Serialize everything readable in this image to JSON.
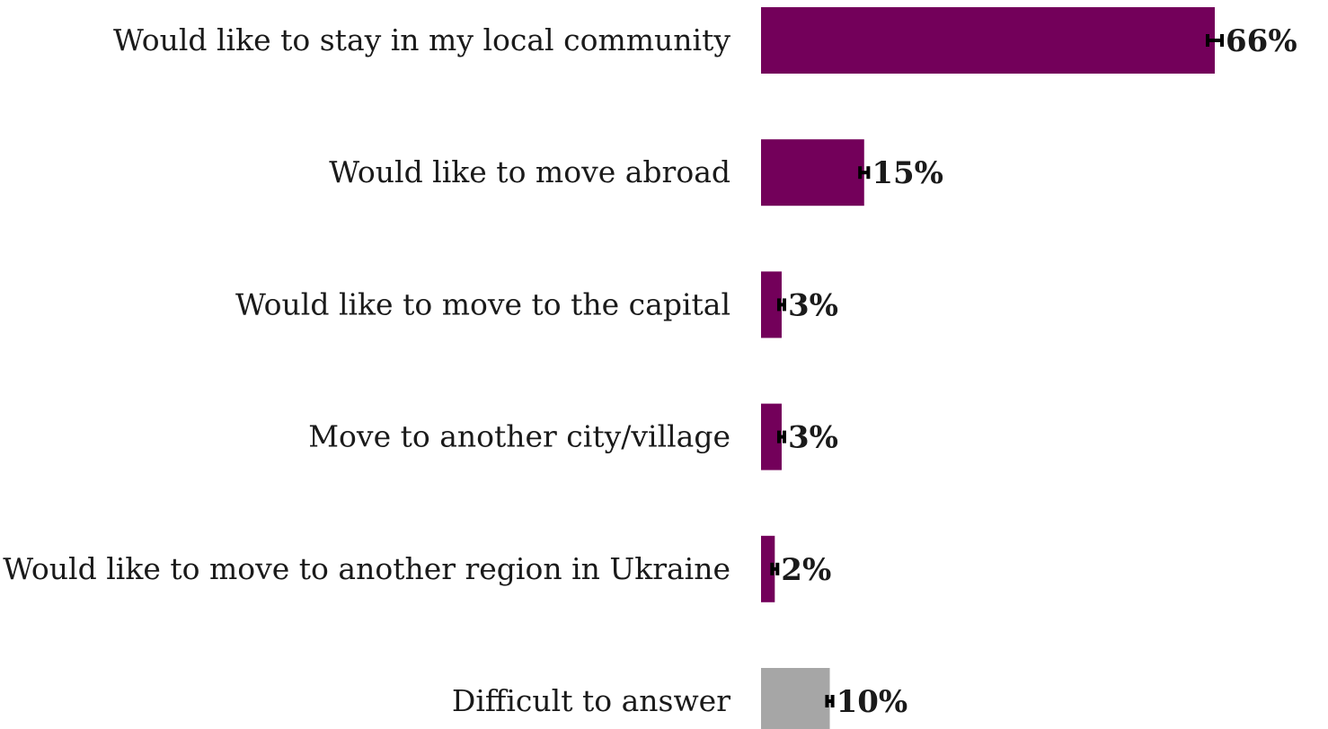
{
  "chart_data": {
    "type": "bar",
    "orientation": "horizontal",
    "categories": [
      "Would like to stay in my local community",
      "Would like to move abroad",
      "Would like to move to the capital",
      "Move to another city/village",
      "Would like to move to another region in Ukraine",
      "Difficult to answer"
    ],
    "values": [
      66,
      15,
      3,
      3,
      2,
      10
    ],
    "value_labels": [
      "66%",
      "15%",
      "3%",
      "3%",
      "2%",
      "10%"
    ],
    "colors": [
      "#73005a",
      "#73005a",
      "#73005a",
      "#73005a",
      "#73005a",
      "#a6a6a6"
    ],
    "error_bars": true,
    "xlim": [
      0,
      66
    ],
    "grid": false,
    "legend": "none"
  }
}
